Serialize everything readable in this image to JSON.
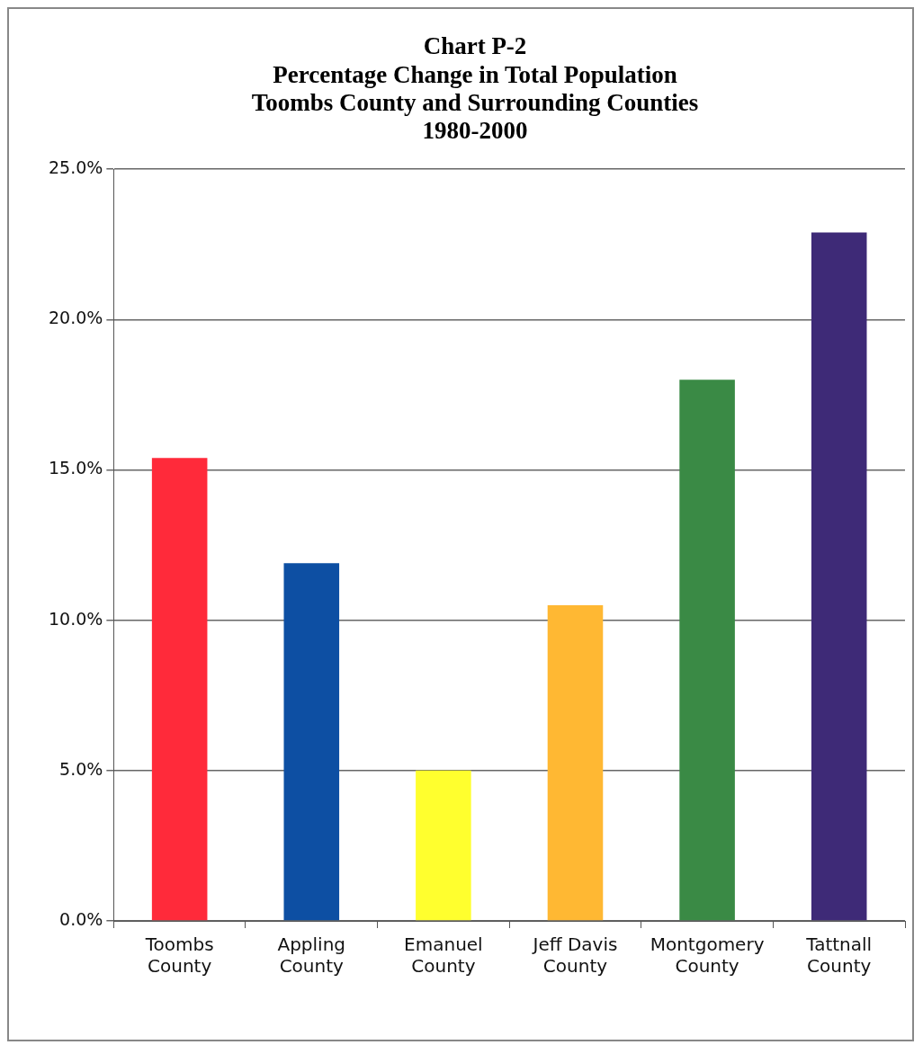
{
  "chart_data": {
    "type": "bar",
    "title": "Chart P-2\nPercentage Change in Total Population\nToombs County and Surrounding Counties\n1980-2000",
    "categories": [
      "Toombs\nCounty",
      "Appling\nCounty",
      "Emanuel\nCounty",
      "Jeff Davis\nCounty",
      "Montgomery\nCounty",
      "Tattnall\nCounty"
    ],
    "values": [
      15.4,
      11.9,
      5.0,
      10.5,
      18.0,
      22.9
    ],
    "colors": [
      "#ff2a3a",
      "#0d4fa3",
      "#ffff2e",
      "#ffb833",
      "#3a8a45",
      "#3e2a77"
    ],
    "ylim": [
      0,
      25
    ],
    "yticks": [
      {
        "value": 0,
        "label": "0.0%"
      },
      {
        "value": 5,
        "label": "5.0%"
      },
      {
        "value": 10,
        "label": "10.0%"
      },
      {
        "value": 15,
        "label": "15.0%"
      },
      {
        "value": 20,
        "label": "20.0%"
      },
      {
        "value": 25,
        "label": "25.0%"
      }
    ],
    "grid": "y",
    "legend": false
  }
}
